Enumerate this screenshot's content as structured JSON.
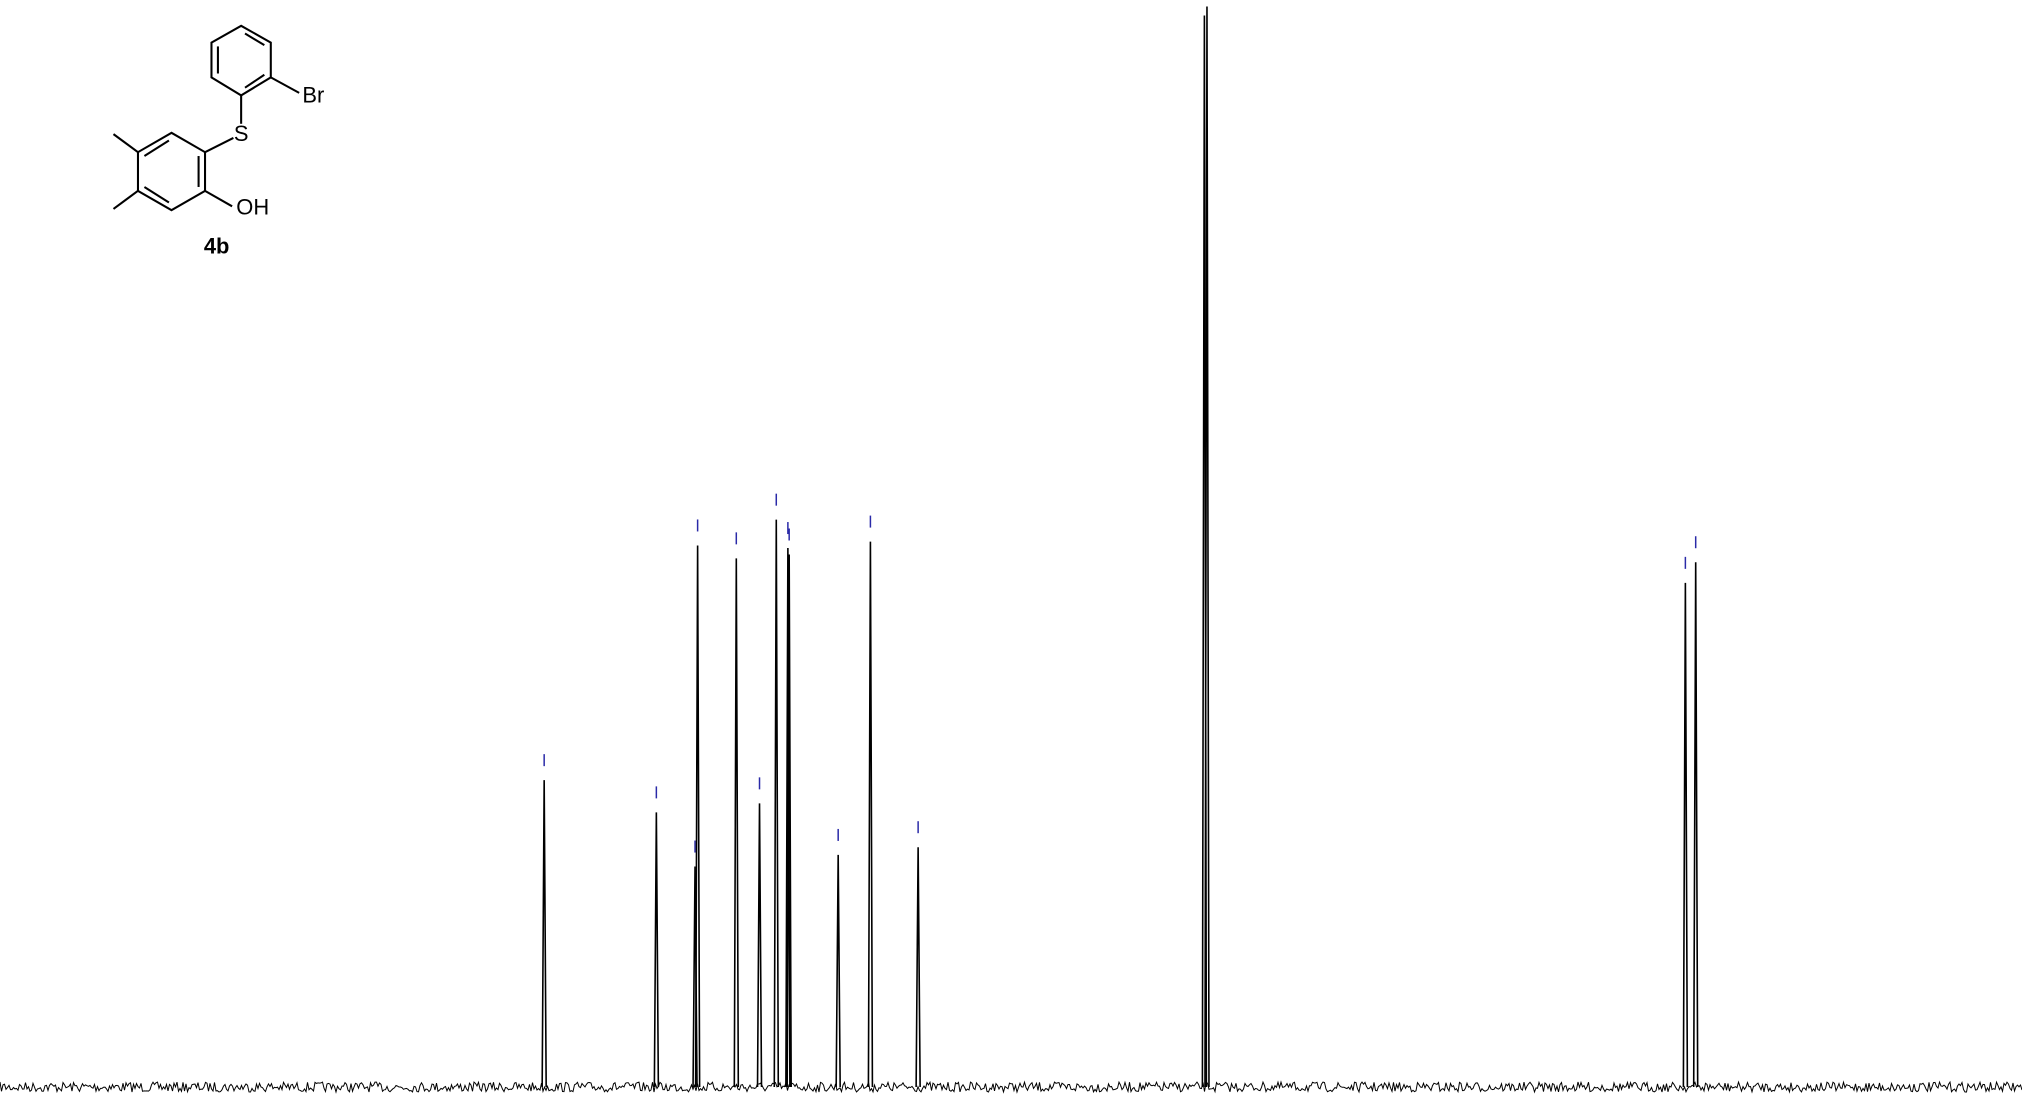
{
  "structure": {
    "atoms": {
      "bromine": "Br",
      "sulfur": "S",
      "hydroxyl": "OH"
    },
    "compound": "4b"
  }
}
